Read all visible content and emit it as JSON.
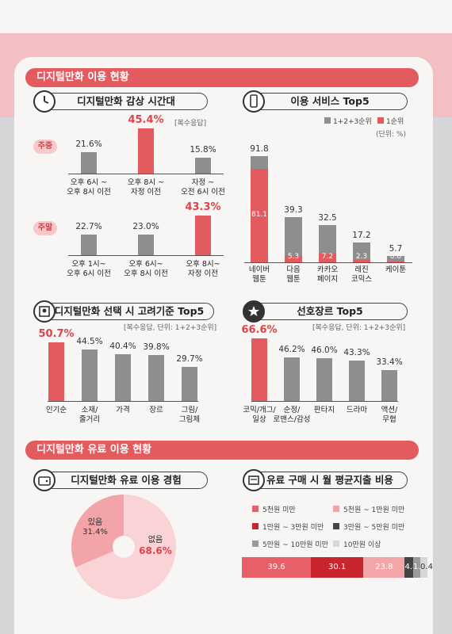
{
  "sections": {
    "usage": "디지털만화 이용 현황",
    "paid": "디지털만화 유료 이용 현황"
  },
  "time_chart": {
    "title": "디지털만화 감상 시간대",
    "note": "[복수응답]",
    "weekday_tag": "주중",
    "weekend_tag": "주말",
    "weekday": [
      {
        "label": "오후 6시 ~\n오후 8시 이전",
        "value": 21.6,
        "text": "21.6%",
        "highlight": false
      },
      {
        "label": "오후 8시 ~\n자정 이전",
        "value": 45.4,
        "text": "45.4%",
        "highlight": true
      },
      {
        "label": "자정 ~\n오전 6시 이전",
        "value": 15.8,
        "text": "15.8%",
        "highlight": false
      }
    ],
    "weekend": [
      {
        "label": "오후 1시~\n오후 6시 이전",
        "value": 22.7,
        "text": "22.7%",
        "highlight": false
      },
      {
        "label": "오후 6시~\n오후 8시 이전",
        "value": 23.0,
        "text": "23.0%",
        "highlight": false
      },
      {
        "label": "오후 8시~\n자정 이전",
        "value": 43.3,
        "text": "43.3%",
        "highlight": true
      }
    ]
  },
  "services": {
    "title": "이용 서비스 Top5",
    "legend_total": "1+2+3순위",
    "legend_first": "1순위",
    "unit": "(단위: %)",
    "items": [
      {
        "label": "네이버\n웹툰",
        "total": 91.8,
        "first": 81.1,
        "total_text": "91.8",
        "first_text": "81.1"
      },
      {
        "label": "다음\n웹툰",
        "total": 39.3,
        "first": 5.3,
        "total_text": "39.3",
        "first_text": "5.3"
      },
      {
        "label": "카카오\n페이지",
        "total": 32.5,
        "first": 7.2,
        "total_text": "32.5",
        "first_text": "7.2"
      },
      {
        "label": "레진\n코믹스",
        "total": 17.2,
        "first": 2.3,
        "total_text": "17.2",
        "first_text": "2.3"
      },
      {
        "label": "케이툰",
        "total": 5.7,
        "first": 0.8,
        "total_text": "5.7",
        "first_text": "0.8"
      }
    ]
  },
  "criteria": {
    "title": "디지털만화 선택 시 고려기준 Top5",
    "note": "[복수응답, 단위: 1+2+3순위]",
    "items": [
      {
        "label": "인기순",
        "value": 50.7,
        "text": "50.7%",
        "highlight": true
      },
      {
        "label": "소재/\n줄거리",
        "value": 44.5,
        "text": "44.5%",
        "highlight": false
      },
      {
        "label": "가격",
        "value": 40.4,
        "text": "40.4%",
        "highlight": false
      },
      {
        "label": "장르",
        "value": 39.8,
        "text": "39.8%",
        "highlight": false
      },
      {
        "label": "그림/\n그림체",
        "value": 29.7,
        "text": "29.7%",
        "highlight": false
      }
    ]
  },
  "genres": {
    "title": "선호장르 Top5",
    "note": "[복수응답, 단위: 1+2+3순위]",
    "items": [
      {
        "label": "코믹/개그/\n일상",
        "value": 66.6,
        "text": "66.6%",
        "highlight": true
      },
      {
        "label": "순정/\n로맨스/감성",
        "value": 46.2,
        "text": "46.2%",
        "highlight": false
      },
      {
        "label": "판타지",
        "value": 46.0,
        "text": "46.0%",
        "highlight": false
      },
      {
        "label": "드라마",
        "value": 43.3,
        "text": "43.3%",
        "highlight": false
      },
      {
        "label": "액션/\n무협",
        "value": 33.4,
        "text": "33.4%",
        "highlight": false
      }
    ]
  },
  "paid_experience": {
    "title": "디지털만화 유료 이용 경험",
    "slices": [
      {
        "label": "있음",
        "value": 31.4,
        "text": "31.4%",
        "color": "#f2a4a9"
      },
      {
        "label": "없음",
        "value": 68.6,
        "text": "68.6%",
        "color": "#f9d3d5"
      }
    ]
  },
  "monthly_spend": {
    "title": "유료 구매 시 월 평균지출 비용",
    "segments": [
      {
        "label": "5천원 미만",
        "value": 39.6,
        "text": "39.6",
        "color": "#e86067"
      },
      {
        "label": "5천원 ~ 1만원 미만",
        "value": 23.8,
        "text": "23.8",
        "color": "#f4a5aa"
      },
      {
        "label": "1만원 ~ 3만원 미만",
        "value": 30.1,
        "text": "30.1",
        "color": "#c7262e"
      },
      {
        "label": "3만원 ~ 5만원 미만",
        "value": 4.8,
        "text": "4.8",
        "color": "#444444"
      },
      {
        "label": "5만원 ~ 10만원 미만",
        "value": 1.4,
        "text": "1.4",
        "color": "#9a9a9a"
      },
      {
        "label": "10만원 이상",
        "value": 0.4,
        "text": "0.4",
        "color": "#d8d8d8"
      }
    ],
    "bar_order": [
      0,
      2,
      1,
      3,
      4,
      5
    ]
  },
  "chart_data": [
    {
      "type": "bar",
      "title": "디지털만화 감상 시간대",
      "series": [
        {
          "name": "주중",
          "categories": [
            "오후 6시 ~ 오후 8시 이전",
            "오후 8시 ~ 자정 이전",
            "자정 ~ 오전 6시 이전"
          ],
          "values": [
            21.6,
            45.4,
            15.8
          ]
        },
        {
          "name": "주말",
          "categories": [
            "오후 1시~ 오후 6시 이전",
            "오후 6시~ 오후 8시 이전",
            "오후 8시~ 자정 이전"
          ],
          "values": [
            22.7,
            23.0,
            43.3
          ]
        }
      ]
    },
    {
      "type": "bar",
      "title": "이용 서비스 Top5",
      "categories": [
        "네이버 웹툰",
        "다음 웹툰",
        "카카오 페이지",
        "레진 코믹스",
        "케이툰"
      ],
      "series": [
        {
          "name": "1+2+3순위",
          "values": [
            91.8,
            39.3,
            32.5,
            17.2,
            5.7
          ]
        },
        {
          "name": "1순위",
          "values": [
            81.1,
            5.3,
            7.2,
            2.3,
            0.8
          ]
        }
      ]
    },
    {
      "type": "bar",
      "title": "디지털만화 선택 시 고려기준 Top5",
      "categories": [
        "인기순",
        "소재/줄거리",
        "가격",
        "장르",
        "그림/그림체"
      ],
      "values": [
        50.7,
        44.5,
        40.4,
        39.8,
        29.7
      ]
    },
    {
      "type": "bar",
      "title": "선호장르 Top5",
      "categories": [
        "코믹/개그/일상",
        "순정/로맨스/감성",
        "판타지",
        "드라마",
        "액션/무협"
      ],
      "values": [
        66.6,
        46.2,
        46.0,
        43.3,
        33.4
      ]
    },
    {
      "type": "pie",
      "title": "디지털만화 유료 이용 경험",
      "categories": [
        "있음",
        "없음"
      ],
      "values": [
        31.4,
        68.6
      ]
    },
    {
      "type": "bar",
      "title": "유료 구매 시 월 평균지출 비용",
      "categories": [
        "5천원 미만",
        "1만원 ~ 3만원 미만",
        "5천원 ~ 1만원 미만",
        "3만원 ~ 5만원 미만",
        "5만원 ~ 10만원 미만",
        "10만원 이상"
      ],
      "values": [
        39.6,
        30.1,
        23.8,
        4.8,
        1.4,
        0.4
      ]
    }
  ]
}
